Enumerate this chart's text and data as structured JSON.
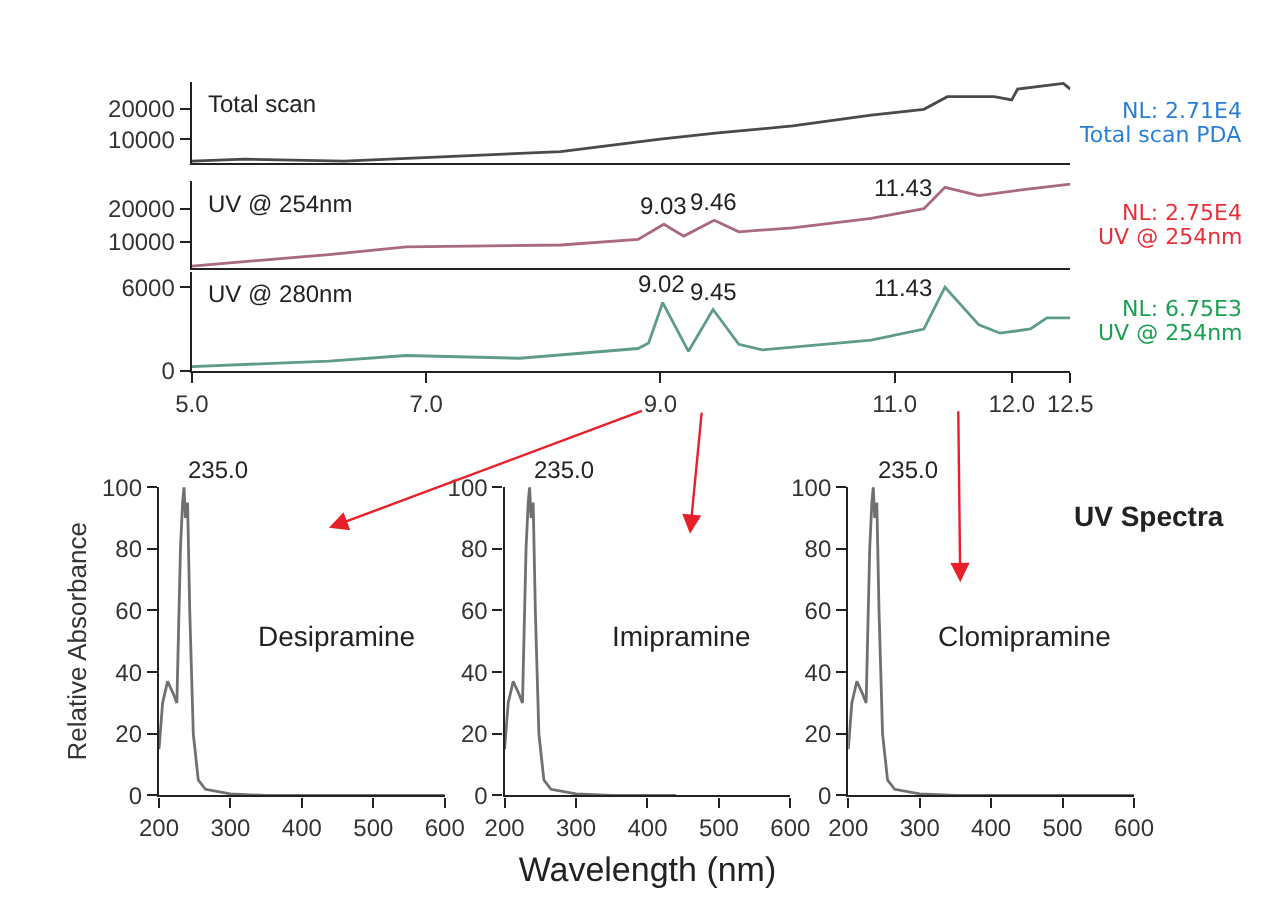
{
  "chart_data": [
    {
      "type": "line",
      "title": "Total scan",
      "annotations": [
        "NL: 2.71E4",
        "Total scan PDA"
      ],
      "tick_labels": "y",
      "xlim": [
        5,
        12.5
      ],
      "ylim": [
        2000,
        29000
      ],
      "yticks": [
        10000,
        20000
      ],
      "series": [
        {
          "color": "#4a4a4a",
          "x": [
            5.0,
            5.45,
            6.3,
            8.15,
            9.0,
            9.47,
            10.13,
            10.8,
            11.25,
            11.45,
            11.85,
            12.0,
            12.05,
            12.44,
            12.5
          ],
          "values": [
            2700,
            3400,
            2700,
            5900,
            10000,
            12000,
            14400,
            18000,
            19900,
            24100,
            24100,
            23000,
            26600,
            28500,
            26600
          ]
        }
      ]
    },
    {
      "type": "line",
      "title": "UV @ 254nm",
      "annotations": [
        "NL: 2.75E4",
        "UV @ 254nm",
        {
          "text": "9.03",
          "x": 9.03,
          "y": 15300
        },
        {
          "text": "9.46",
          "x": 9.46,
          "y": 16500
        },
        {
          "text": "11.43",
          "x": 11.43,
          "y": 26500
        }
      ],
      "tick_labels": "y",
      "xlim": [
        5,
        12.5
      ],
      "ylim": [
        2000,
        28500
      ],
      "yticks": [
        10000,
        20000
      ],
      "series": [
        {
          "color": "#a86a7c",
          "x": [
            5.0,
            6.17,
            6.83,
            8.15,
            8.81,
            9.03,
            9.2,
            9.46,
            9.67,
            10.13,
            10.8,
            11.25,
            11.43,
            11.72,
            12.1,
            12.5
          ],
          "values": [
            2600,
            6100,
            8400,
            9000,
            10700,
            15300,
            11700,
            16500,
            13000,
            14200,
            17100,
            20000,
            26500,
            24000,
            25800,
            27500
          ]
        }
      ]
    },
    {
      "type": "line",
      "title": "UV @ 280nm",
      "annotations": [
        "NL: 6.75E3",
        "UV @ 254nm",
        {
          "text": "9.02",
          "x": 9.02,
          "y": 4900
        },
        {
          "text": "9.45",
          "x": 9.45,
          "y": 4400
        },
        {
          "text": "11.43",
          "x": 11.43,
          "y": 6000
        }
      ],
      "xlim": [
        5,
        12.5
      ],
      "ylim": [
        0,
        7100
      ],
      "yticks": [
        0,
        6000
      ],
      "xticks": [
        {
          "value": 5,
          "label": "5.0"
        },
        {
          "value": 7,
          "label": "7.0"
        },
        {
          "value": 9,
          "label": "9.0"
        },
        {
          "value": 11,
          "label": "11.0"
        },
        {
          "value": 12,
          "label": "12.0"
        },
        12.5
      ],
      "series": [
        {
          "color": "#5e9c86",
          "x": [
            5.0,
            6.17,
            6.83,
            7.8,
            8.81,
            8.9,
            9.02,
            9.24,
            9.45,
            9.67,
            9.87,
            10.8,
            11.25,
            11.43,
            11.72,
            11.9,
            12.16,
            12.3,
            12.5
          ],
          "values": [
            300,
            700,
            1100,
            900,
            1600,
            2000,
            4900,
            1400,
            4400,
            1900,
            1500,
            2200,
            3000,
            6000,
            3300,
            2700,
            3000,
            3800,
            3800
          ]
        }
      ]
    },
    {
      "type": "line",
      "title": "Desipramine",
      "ylabel": "Relative Absorbance",
      "annotations": [
        {
          "text": "235.0",
          "x": 235,
          "y": 100
        }
      ],
      "xlim": [
        200,
        600
      ],
      "ylim": [
        0,
        100
      ],
      "xticks": [
        200,
        300,
        400,
        500,
        600
      ],
      "yticks": [
        0,
        20,
        40,
        60,
        80,
        100
      ],
      "series": [
        {
          "color": "#707070",
          "x": [
            200,
            205,
            212,
            220,
            225,
            230,
            233,
            235,
            237,
            240,
            243,
            248,
            255,
            265,
            300,
            350,
            600
          ],
          "values": [
            15,
            30,
            37,
            33,
            30,
            80,
            95,
            100,
            90,
            95,
            60,
            20,
            5,
            2,
            0.5,
            0,
            0
          ]
        }
      ]
    },
    {
      "type": "line",
      "title": "Imipramine",
      "xlabel": "Wavelength (nm)",
      "annotations": [
        {
          "text": "235.0",
          "x": 235,
          "y": 100
        }
      ],
      "xlim": [
        200,
        600
      ],
      "ylim": [
        0,
        100
      ],
      "xticks": [
        200,
        300,
        400,
        500,
        600
      ],
      "yticks": [
        0,
        20,
        40,
        60,
        80,
        100
      ],
      "series": [
        {
          "color": "#707070",
          "x": [
            200,
            205,
            212,
            220,
            225,
            230,
            233,
            235,
            237,
            240,
            243,
            248,
            255,
            265,
            300,
            350,
            440
          ],
          "values": [
            15,
            30,
            37,
            33,
            30,
            80,
            95,
            100,
            90,
            95,
            60,
            20,
            5,
            2,
            0.5,
            0,
            0
          ]
        }
      ]
    },
    {
      "type": "line",
      "title": "Clomipramine",
      "annotations": [
        {
          "text": "235.0",
          "x": 235,
          "y": 100
        },
        "UV Spectra"
      ],
      "xlim": [
        200,
        600
      ],
      "ylim": [
        0,
        100
      ],
      "xticks": [
        200,
        300,
        400,
        500,
        600
      ],
      "yticks": [
        0,
        20,
        40,
        60,
        80,
        100
      ],
      "series": [
        {
          "color": "#707070",
          "x": [
            200,
            205,
            212,
            220,
            225,
            230,
            233,
            235,
            237,
            240,
            243,
            248,
            255,
            265,
            300,
            350,
            600
          ],
          "values": [
            15,
            30,
            37,
            33,
            30,
            80,
            95,
            100,
            90,
            95,
            60,
            20,
            5,
            2,
            0.5,
            0,
            0
          ]
        }
      ]
    }
  ]
}
